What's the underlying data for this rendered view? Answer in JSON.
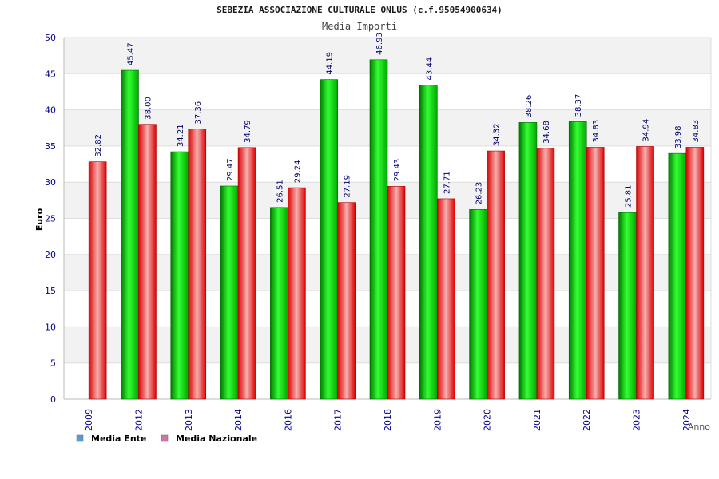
{
  "chart_data": {
    "type": "bar",
    "title": "SEBEZIA ASSOCIAZIONE CULTURALE ONLUS (c.f.95054900634)",
    "subtitle": "Media Importi",
    "xlabel": "Anno",
    "ylabel": "Euro",
    "ylim": [
      0,
      50
    ],
    "yticks": [
      "0",
      "5",
      "10",
      "15",
      "20",
      "25",
      "30",
      "35",
      "40",
      "45",
      "50"
    ],
    "grid": true,
    "legend_position": "bottom-left",
    "categories": [
      "2009",
      "2012",
      "2013",
      "2014",
      "2016",
      "2017",
      "2018",
      "2019",
      "2020",
      "2021",
      "2022",
      "2023",
      "2024"
    ],
    "series": [
      {
        "name": "Media Ente",
        "color": "#00c000",
        "legend_color": "#5b9bd5",
        "values": [
          null,
          45.47,
          34.21,
          29.47,
          26.51,
          44.19,
          46.93,
          43.44,
          26.23,
          38.26,
          38.37,
          25.81,
          33.98
        ],
        "labels": [
          null,
          "45.47",
          "34.21",
          "29.47",
          "26.51",
          "44.19",
          "46.93",
          "43.44",
          "26.23",
          "38.26",
          "38.37",
          "25.81",
          "33.98"
        ]
      },
      {
        "name": "Media Nazionale",
        "color": "#ee1111",
        "legend_color": "#cc77aa",
        "values": [
          32.82,
          38.0,
          37.36,
          34.79,
          29.24,
          27.19,
          29.43,
          27.71,
          34.32,
          34.68,
          34.83,
          34.94,
          34.83
        ],
        "labels": [
          "32.82",
          "38.00",
          "37.36",
          "34.79",
          "29.24",
          "27.19",
          "29.43",
          "27.71",
          "34.32",
          "34.68",
          "34.83",
          "34.94",
          "34.83"
        ]
      }
    ]
  }
}
